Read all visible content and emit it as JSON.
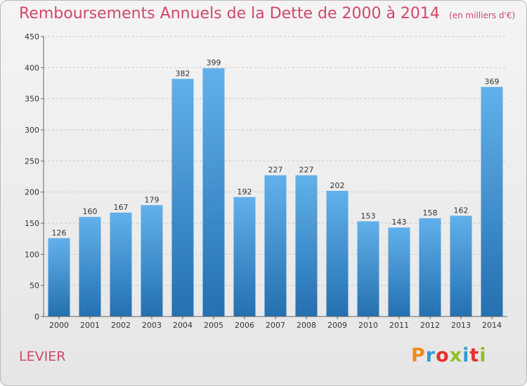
{
  "title": "Remboursements Annuels de la Dette de 2000 à 2014",
  "unit": "(en milliers d'€)",
  "commune": "LEVIER",
  "logo": {
    "text": "Proxiti",
    "colors": [
      "#f08a1c",
      "#2f9bd6",
      "#e3322b",
      "#8fbf2a",
      "#2f9bd6",
      "#e3322b",
      "#8fbf2a"
    ]
  },
  "colors": {
    "title": "#d1476a",
    "bar_light": "#62b0eb",
    "bar_dark": "#2470b0"
  },
  "chart_data": {
    "type": "bar",
    "categories": [
      "2000",
      "2001",
      "2002",
      "2003",
      "2004",
      "2005",
      "2006",
      "2007",
      "2008",
      "2009",
      "2010",
      "2011",
      "2012",
      "2013",
      "2014"
    ],
    "values": [
      126,
      160,
      167,
      179,
      382,
      399,
      192,
      227,
      227,
      202,
      153,
      143,
      158,
      162,
      369
    ],
    "ylim": [
      0,
      450
    ],
    "yticks": [
      0,
      50,
      100,
      150,
      200,
      250,
      300,
      350,
      400,
      450
    ],
    "grid": true,
    "xlabel": "",
    "ylabel": ""
  }
}
